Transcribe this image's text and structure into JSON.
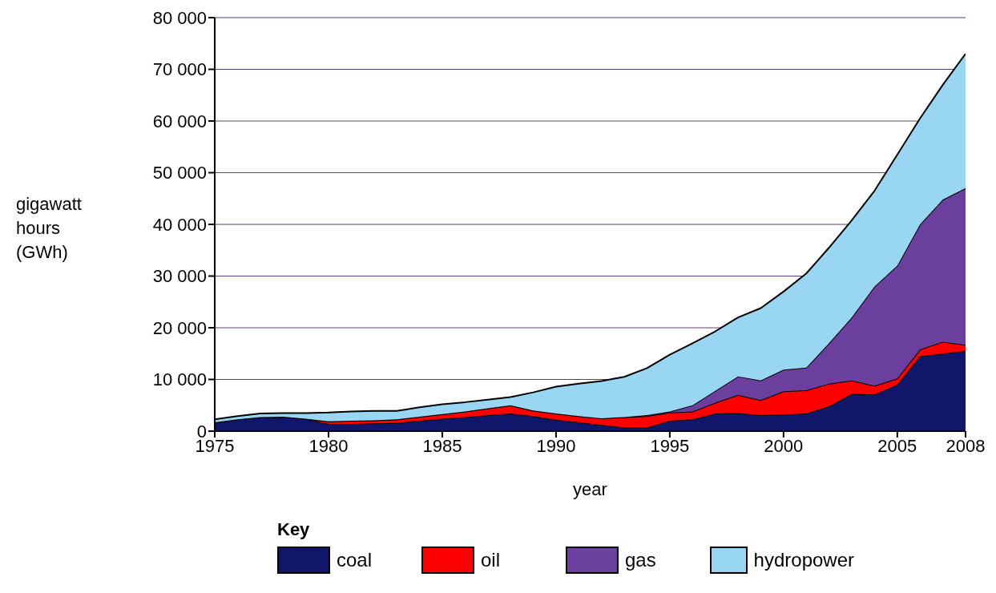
{
  "chart_data": {
    "type": "area",
    "stacked": true,
    "xlabel": "year",
    "ylabel": "gigawatt\nhours\n(GWh)",
    "legend_title": "Key",
    "legend": "bottom",
    "grid": "y",
    "x": [
      1975,
      1976,
      1977,
      1978,
      1979,
      1980,
      1981,
      1982,
      1983,
      1984,
      1985,
      1986,
      1987,
      1988,
      1989,
      1990,
      1991,
      1992,
      1993,
      1994,
      1995,
      1996,
      1997,
      1998,
      1999,
      2000,
      2001,
      2002,
      2003,
      2004,
      2005,
      2006,
      2007,
      2008
    ],
    "xlim": [
      1975,
      2008
    ],
    "xticks": [
      1975,
      1980,
      1985,
      1990,
      1995,
      2000,
      2005,
      2008
    ],
    "ylim": [
      0,
      80000
    ],
    "yticks": [
      0,
      {
        "value": 10000,
        "label": "10 000"
      },
      {
        "value": 20000,
        "label": "20 000"
      },
      {
        "value": 30000,
        "label": "30 000"
      },
      {
        "value": 40000,
        "label": "40 000"
      },
      {
        "value": 50000,
        "label": "50 000"
      },
      {
        "value": 60000,
        "label": "60 000"
      },
      {
        "value": 70000,
        "label": "70 000"
      },
      {
        "value": 80000,
        "label": "80 000"
      }
    ],
    "series": [
      {
        "name": "coal",
        "color": "#10166a",
        "values": [
          1700,
          2300,
          2700,
          2800,
          2400,
          1400,
          1400,
          1500,
          1600,
          2000,
          2400,
          2700,
          3100,
          3400,
          2900,
          2200,
          1700,
          1200,
          700,
          700,
          2000,
          2300,
          3400,
          3500,
          3100,
          3200,
          3400,
          4800,
          7200,
          7100,
          9000,
          14500,
          15000,
          15500
        ]
      },
      {
        "name": "oil",
        "color": "#ff0000",
        "values": [
          0,
          0,
          0,
          0,
          0,
          500,
          600,
          600,
          700,
          800,
          900,
          1100,
          1300,
          1600,
          1100,
          1200,
          1200,
          1300,
          2000,
          2200,
          1600,
          1500,
          2100,
          3500,
          2900,
          4500,
          4500,
          4400,
          2600,
          1700,
          1200,
          1300,
          2300,
          1200
        ]
      },
      {
        "name": "gas",
        "color": "#6b3f9e",
        "values": [
          0,
          0,
          0,
          0,
          0,
          0,
          0,
          0,
          0,
          0,
          0,
          0,
          0,
          0,
          0,
          0,
          0,
          0,
          0,
          200,
          200,
          1200,
          2300,
          3600,
          3800,
          4200,
          4400,
          7800,
          12200,
          19200,
          21800,
          24200,
          27500,
          30300
        ]
      },
      {
        "name": "hydropower",
        "color": "#99d6f2",
        "values": [
          600,
          600,
          700,
          700,
          1100,
          1700,
          1800,
          1800,
          1600,
          1800,
          1900,
          1800,
          1700,
          1600,
          3500,
          5200,
          6300,
          7200,
          7800,
          9100,
          11000,
          12000,
          11500,
          11400,
          14000,
          15100,
          18200,
          18500,
          18800,
          18500,
          21500,
          20500,
          22200,
          26000
        ]
      }
    ]
  }
}
